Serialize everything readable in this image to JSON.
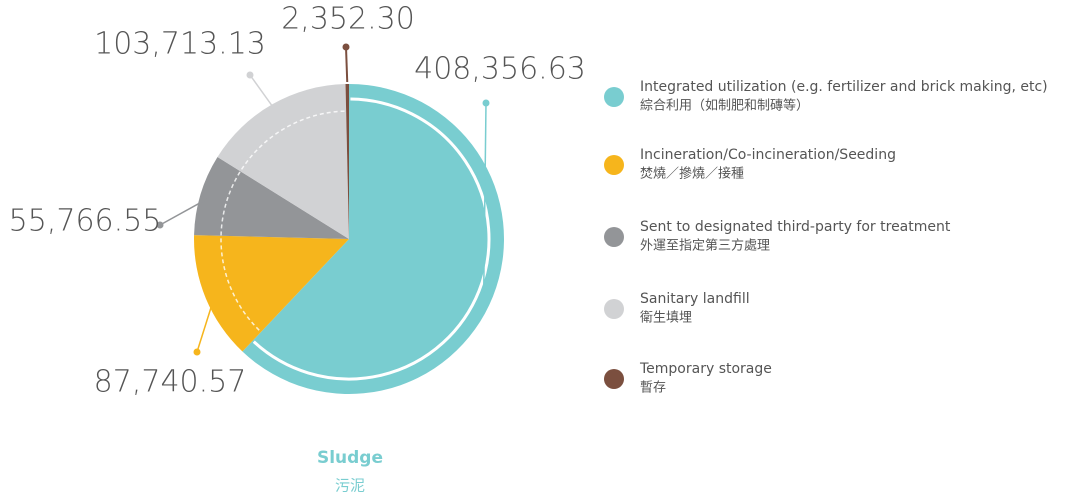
{
  "chart_data": {
    "type": "pie",
    "title": "Sludge",
    "subtitle": "污泥",
    "categories": [
      "Integrated utilization (e.g. fertilizer and brick making, etc)",
      "Incineration/Co-incineration/Seeding",
      "Sent to designated third-party for treatment",
      "Sanitary landfill",
      "Temporary storage"
    ],
    "categories_zh": [
      "綜合利用（如制肥和制磚等）",
      "焚燒／摻燒／接種",
      "外運至指定第三方處理",
      "衛生填埋",
      "暫存"
    ],
    "values": [
      408356.63,
      87740.57,
      55766.55,
      103713.13,
      2352.3
    ],
    "value_labels": [
      "408,356.63",
      "87,740.57",
      "55,766.55",
      "103,713.13",
      "2,352.30"
    ],
    "colors": [
      "#79cdd0",
      "#f6b51c",
      "#939598",
      "#d1d2d4",
      "#7b4f3f"
    ]
  }
}
